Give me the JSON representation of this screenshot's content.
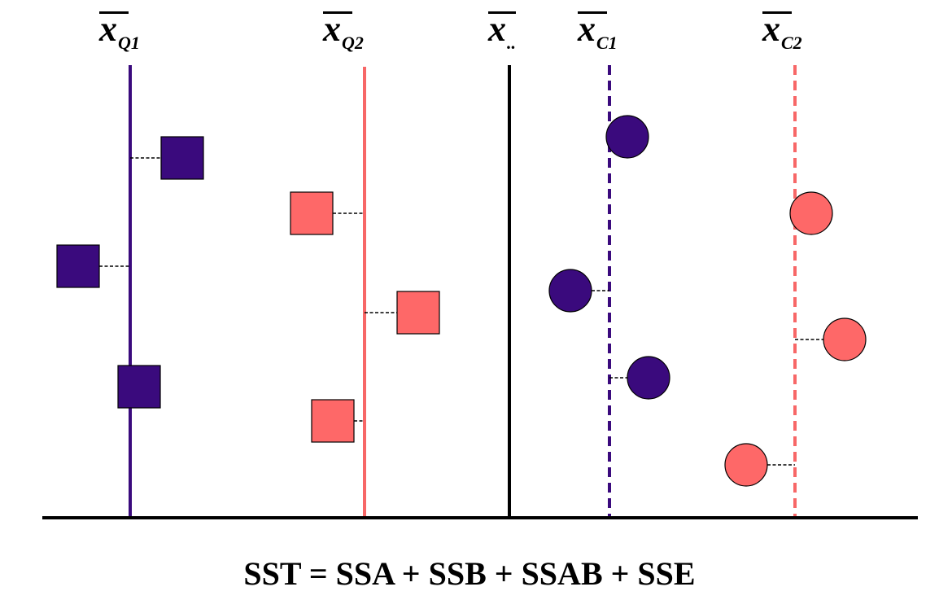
{
  "means": [
    {
      "id": "q1",
      "base": "x",
      "sub": "Q1",
      "line_color": "#3a0a7d",
      "dashed": false
    },
    {
      "id": "q2",
      "base": "x",
      "sub": "Q2",
      "line_color": "#f76767",
      "dashed": false
    },
    {
      "id": "grand",
      "base": "x",
      "sub": "..",
      "line_color": "#000000",
      "dashed": false
    },
    {
      "id": "c1",
      "base": "x",
      "sub": "C1",
      "line_color": "#3a0a7d",
      "dashed": true
    },
    {
      "id": "c2",
      "base": "x",
      "sub": "C2",
      "line_color": "#f76767",
      "dashed": true
    }
  ],
  "colors": {
    "purple": "#3a0a7d",
    "salmon": "#fe6868",
    "axis": "#000000"
  },
  "points": [
    {
      "shape": "square",
      "color": "purple",
      "group": "q1"
    },
    {
      "shape": "square",
      "color": "purple",
      "group": "q1"
    },
    {
      "shape": "square",
      "color": "purple",
      "group": "q1"
    },
    {
      "shape": "square",
      "color": "salmon",
      "group": "q2"
    },
    {
      "shape": "square",
      "color": "salmon",
      "group": "q2"
    },
    {
      "shape": "square",
      "color": "salmon",
      "group": "q2"
    },
    {
      "shape": "circle",
      "color": "purple",
      "group": "c1"
    },
    {
      "shape": "circle",
      "color": "purple",
      "group": "c1"
    },
    {
      "shape": "circle",
      "color": "purple",
      "group": "c1"
    },
    {
      "shape": "circle",
      "color": "salmon",
      "group": "c2"
    },
    {
      "shape": "circle",
      "color": "salmon",
      "group": "c2"
    },
    {
      "shape": "circle",
      "color": "salmon",
      "group": "c2"
    }
  ],
  "equation": "SST = SSA + SSB + SSAB + SSE"
}
